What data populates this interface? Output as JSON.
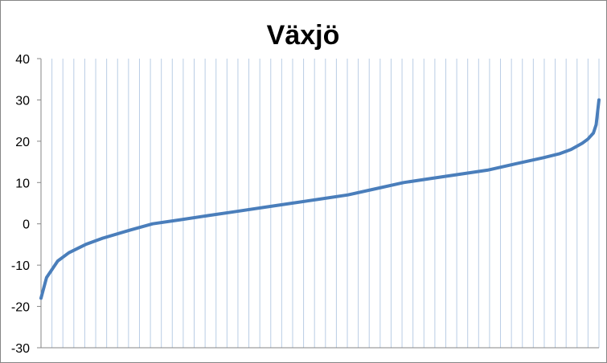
{
  "chart_data": {
    "type": "line",
    "title": "Växjö",
    "xlabel": "",
    "ylabel": "",
    "ylim": [
      -30,
      40
    ],
    "y_ticks": [
      40,
      30,
      20,
      10,
      0,
      -10,
      -20,
      -30
    ],
    "y_tick_labels": [
      "40",
      "30",
      "20",
      "10",
      "0",
      "-10",
      "-20",
      "-30"
    ],
    "x_categories_count": 51,
    "grid": "vertical gridlines at every category",
    "legend": "none",
    "series": [
      {
        "color": "#4a7ebb",
        "x": [
          0,
          0.01,
          0.02,
          0.03,
          0.05,
          0.08,
          0.11,
          0.16,
          0.2,
          0.25,
          0.3,
          0.35,
          0.4,
          0.45,
          0.5,
          0.55,
          0.6,
          0.65,
          0.7,
          0.75,
          0.8,
          0.85,
          0.9,
          0.93,
          0.95,
          0.97,
          0.98,
          0.99,
          0.995,
          1
        ],
        "values": [
          -18,
          -13,
          -11,
          -9,
          -7,
          -5,
          -3.5,
          -1.5,
          0,
          1,
          2,
          3,
          4,
          5,
          6,
          7,
          8.5,
          10,
          11,
          12,
          13,
          14.5,
          16,
          17,
          18,
          19.5,
          20.5,
          22,
          24,
          30
        ]
      }
    ]
  },
  "colors": {
    "gridline": "#b9cde5",
    "axis": "#868686",
    "series": "#4a7ebb"
  }
}
